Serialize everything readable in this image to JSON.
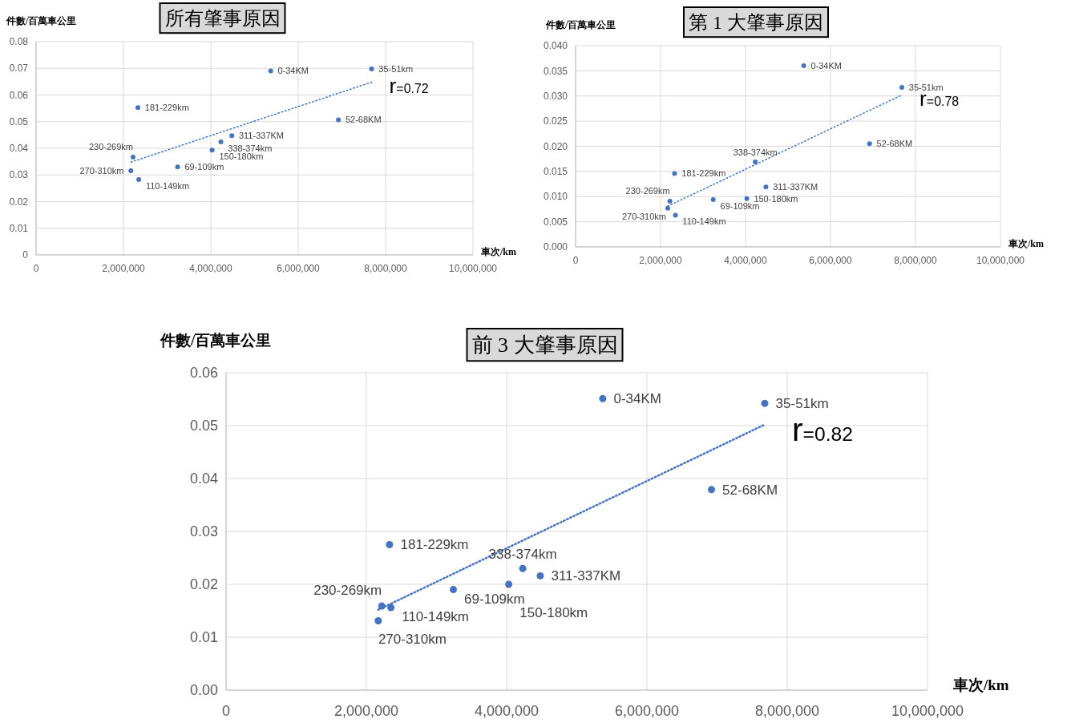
{
  "chart_data": [
    {
      "type": "scatter",
      "title": "所有肇事原因",
      "xlabel": "車次/km",
      "ylabel": "件數/百萬車公里",
      "grid": true,
      "marker": "circle",
      "xlim": [
        0,
        10000000
      ],
      "xticks": [
        {
          "value": 0,
          "label": "0"
        },
        {
          "value": 2000000,
          "label": "2,000,000"
        },
        {
          "value": 4000000,
          "label": "4,000,000"
        },
        {
          "value": 6000000,
          "label": "6,000,000"
        },
        {
          "value": 8000000,
          "label": "8,000,000"
        },
        {
          "value": 10000000,
          "label": "10,000,000"
        }
      ],
      "ylim": [
        0,
        0.08
      ],
      "yticks": [
        0,
        0.01,
        0.02,
        0.03,
        0.04,
        0.05,
        0.06,
        0.07,
        0.08
      ],
      "series": [
        {
          "color": "#4472c4",
          "x": [
            5370000,
            7680000,
            6920000,
            2330000,
            2220000,
            2170000,
            2350000,
            3240000,
            4030000,
            4230000,
            4480000
          ],
          "values": [
            0.069,
            0.0698,
            0.0507,
            0.0553,
            0.0367,
            0.0316,
            0.0283,
            0.033,
            0.0393,
            0.0424,
            0.0447
          ]
        },
        {
          "type": "line",
          "color": "#4472c4",
          "line_style": "dotted",
          "marker": "none",
          "x": [
            2170000,
            7680000
          ],
          "values": [
            0.0348,
            0.0648
          ]
        }
      ],
      "annotations": [
        {
          "text": "0-34KM",
          "x": 5370000,
          "y": 0.069
        },
        {
          "text": "35-51km",
          "x": 7680000,
          "y": 0.0698
        },
        {
          "text": "52-68KM",
          "x": 6920000,
          "y": 0.0507
        },
        {
          "text": "181-229km",
          "x": 2330000,
          "y": 0.0553
        },
        {
          "text": "230-269km",
          "x": 2220000,
          "y": 0.0367
        },
        {
          "text": "270-310km",
          "x": 2170000,
          "y": 0.0316
        },
        {
          "text": "110-149km",
          "x": 2350000,
          "y": 0.0283
        },
        {
          "text": "69-109km",
          "x": 3240000,
          "y": 0.033
        },
        {
          "text": "150-180km",
          "x": 4030000,
          "y": 0.0393
        },
        {
          "text": "338-374km",
          "x": 4230000,
          "y": 0.0424
        },
        {
          "text": "311-337KM",
          "x": 4480000,
          "y": 0.0447
        },
        {
          "text": "r=0.72",
          "x": 7680000,
          "y": 0.0648
        }
      ]
    },
    {
      "type": "scatter",
      "title": "第 1 大肇事原因",
      "xlabel": "車次/km",
      "ylabel": "件數/百萬車公里",
      "grid": true,
      "marker": "circle",
      "xlim": [
        0,
        10000000
      ],
      "xticks": [
        {
          "value": 0,
          "label": "0"
        },
        {
          "value": 2000000,
          "label": "2,000,000"
        },
        {
          "value": 4000000,
          "label": "4,000,000"
        },
        {
          "value": 6000000,
          "label": "6,000,000"
        },
        {
          "value": 8000000,
          "label": "8,000,000"
        },
        {
          "value": 10000000,
          "label": "10,000,000"
        }
      ],
      "ylim": [
        0,
        0.04
      ],
      "yticks": [
        {
          "value": 0,
          "label": "0.000"
        },
        0.005,
        {
          "value": 0.01,
          "label": "0.010"
        },
        0.015,
        {
          "value": 0.02,
          "label": "0.020"
        },
        0.025,
        {
          "value": 0.03,
          "label": "0.030"
        },
        0.035,
        {
          "value": 0.04,
          "label": "0.040"
        }
      ],
      "series": [
        {
          "color": "#4472c4",
          "x": [
            5370000,
            7680000,
            6920000,
            2330000,
            2220000,
            2170000,
            2350000,
            3240000,
            4030000,
            4230000,
            4480000
          ],
          "values": [
            0.036,
            0.0317,
            0.0205,
            0.0146,
            0.0091,
            0.0077,
            0.0063,
            0.0094,
            0.0096,
            0.0169,
            0.0119
          ]
        },
        {
          "type": "line",
          "color": "#4472c4",
          "line_style": "dotted",
          "marker": "none",
          "x": [
            2170000,
            7680000
          ],
          "values": [
            0.0081,
            0.0302
          ]
        }
      ],
      "annotations": [
        {
          "text": "0-34KM",
          "x": 5370000,
          "y": 0.036
        },
        {
          "text": "35-51km",
          "x": 7680000,
          "y": 0.0317
        },
        {
          "text": "52-68KM",
          "x": 6920000,
          "y": 0.0205
        },
        {
          "text": "181-229km",
          "x": 2330000,
          "y": 0.0146
        },
        {
          "text": "230-269km",
          "x": 2220000,
          "y": 0.0091
        },
        {
          "text": "270-310km",
          "x": 2170000,
          "y": 0.0077
        },
        {
          "text": "110-149km",
          "x": 2350000,
          "y": 0.0063
        },
        {
          "text": "69-109km",
          "x": 3240000,
          "y": 0.0094
        },
        {
          "text": "150-180km",
          "x": 4030000,
          "y": 0.0096
        },
        {
          "text": "338-374km",
          "x": 4230000,
          "y": 0.0169
        },
        {
          "text": "311-337KM",
          "x": 4480000,
          "y": 0.0119
        },
        {
          "text": "r=0.78",
          "x": 7680000,
          "y": 0.0302
        }
      ]
    },
    {
      "type": "scatter",
      "title": "前 3 大肇事原因",
      "xlabel": "車次/km",
      "ylabel": "件數/百萬車公里",
      "grid": true,
      "marker": "circle",
      "xlim": [
        0,
        10000000
      ],
      "xticks": [
        {
          "value": 0,
          "label": "0"
        },
        {
          "value": 2000000,
          "label": "2,000,000"
        },
        {
          "value": 4000000,
          "label": "4,000,000"
        },
        {
          "value": 6000000,
          "label": "6,000,000"
        },
        {
          "value": 8000000,
          "label": "8,000,000"
        },
        {
          "value": 10000000,
          "label": "10,000,000"
        }
      ],
      "ylim": [
        0,
        0.06
      ],
      "yticks": [
        {
          "value": 0,
          "label": "0.00"
        },
        0.01,
        0.02,
        0.03,
        0.04,
        0.05,
        0.06
      ],
      "series": [
        {
          "color": "#4472c4",
          "x": [
            5370000,
            7680000,
            6920000,
            2330000,
            2220000,
            2170000,
            2350000,
            3240000,
            4030000,
            4230000,
            4480000
          ],
          "values": [
            0.0551,
            0.0542,
            0.0379,
            0.0275,
            0.0159,
            0.0131,
            0.0156,
            0.019,
            0.02,
            0.023,
            0.0216
          ]
        },
        {
          "type": "line",
          "color": "#4472c4",
          "line_style": "dotted",
          "marker": "none",
          "x": [
            2170000,
            7680000
          ],
          "values": [
            0.0152,
            0.0502
          ]
        }
      ],
      "annotations": [
        {
          "text": "0-34KM",
          "x": 5370000,
          "y": 0.0551
        },
        {
          "text": "35-51km",
          "x": 7680000,
          "y": 0.0542
        },
        {
          "text": "52-68KM",
          "x": 6920000,
          "y": 0.0379
        },
        {
          "text": "181-229km",
          "x": 2330000,
          "y": 0.0275
        },
        {
          "text": "230-269km",
          "x": 2220000,
          "y": 0.0159
        },
        {
          "text": "270-310km",
          "x": 2170000,
          "y": 0.0131
        },
        {
          "text": "110-149km",
          "x": 2350000,
          "y": 0.0156
        },
        {
          "text": "69-109km",
          "x": 3240000,
          "y": 0.019
        },
        {
          "text": "150-180km",
          "x": 4030000,
          "y": 0.02
        },
        {
          "text": "338-374km",
          "x": 4230000,
          "y": 0.023
        },
        {
          "text": "311-337KM",
          "x": 4480000,
          "y": 0.0216
        },
        {
          "text": "r=0.82",
          "x": 7680000,
          "y": 0.0502
        }
      ]
    }
  ]
}
